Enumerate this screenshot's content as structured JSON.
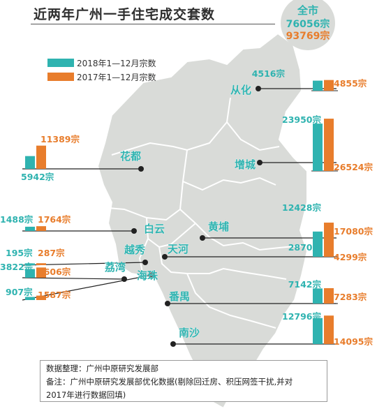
{
  "title": "近两年广州一手住宅成交套数",
  "total": {
    "label": "全市",
    "value_2018": "76056宗",
    "value_2017": "93769宗"
  },
  "legend": [
    {
      "label": "2018年1—12月宗数",
      "color": "#2fb3b0"
    },
    {
      "label": "2017年1—12月宗数",
      "color": "#e87d2c"
    }
  ],
  "colors": {
    "s2018": "#2fb3b0",
    "s2017": "#e87d2c",
    "map_fill": "#d9dbd8",
    "map_border": "#ffffff",
    "district_text": "#2fb3b0"
  },
  "chart_data": {
    "type": "bar",
    "title": "近两年广州一手住宅成交套数",
    "series": [
      {
        "name": "2018年1—12月宗数",
        "values": [
          4516,
          23950,
          5942,
          12428,
          1488,
          2870,
          195,
          3822,
          907,
          7142,
          12796
        ]
      },
      {
        "name": "2017年1—12月宗数",
        "values": [
          4855,
          26524,
          11389,
          17080,
          1764,
          4299,
          287,
          4606,
          1587,
          7283,
          14095
        ]
      }
    ],
    "categories": [
      "从化",
      "增城",
      "花都",
      "黄埔",
      "白云",
      "天河",
      "越秀",
      "荔湾",
      "海珠",
      "番禺",
      "南沙"
    ],
    "labels_2018": [
      "4516宗",
      "23950宗",
      "5942宗",
      "12428宗",
      "1488宗",
      "2870宗",
      "195宗",
      "3822宗",
      "907宗",
      "7142宗",
      "12796宗"
    ],
    "labels_2017": [
      "4855宗",
      "26524宗",
      "11389宗",
      "17080宗",
      "1764宗",
      "4299宗",
      "287宗",
      "4606宗",
      "1587宗",
      "7283宗",
      "14095宗"
    ]
  },
  "note": {
    "line1": "数据整理：广州中原研究发展部",
    "line2": "备注：广州中原研究发展部优化数据(剔除回迁房、积压网签干扰,并对",
    "line3": "2017年进行数据回填)"
  }
}
